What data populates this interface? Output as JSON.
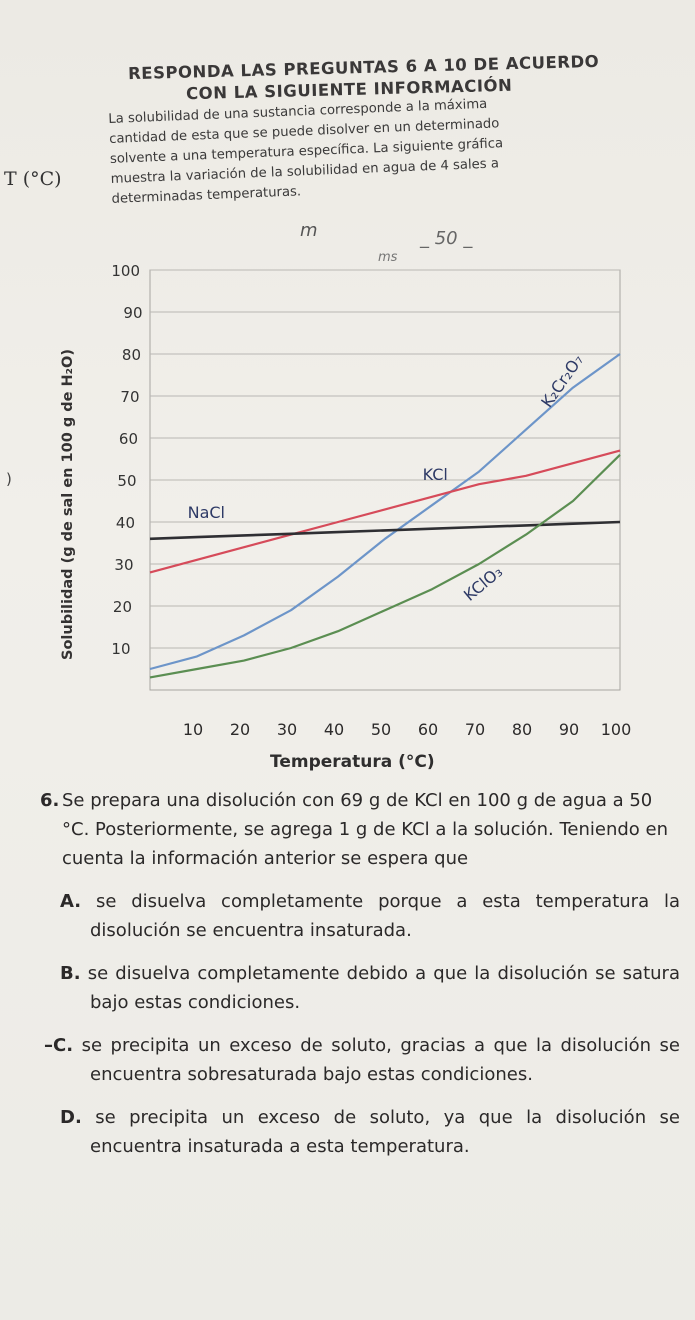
{
  "header": {
    "line1": "RESPONDA LAS PREGUNTAS 6 A 10 DE ACUERDO",
    "line2": "CON LA SIGUIENTE INFORMACIÓN"
  },
  "intro_lines": [
    "La solubilidad de una sustancia corresponde a la máxima",
    "cantidad de esta que se puede disolver en un determinado",
    "solvente a una temperatura específica. La siguiente gráfica",
    "muestra la variación de la solubilidad en agua de 4 sales a",
    "determinadas temperaturas."
  ],
  "margin_notes": {
    "t_label": "T (°C)",
    "paren": ")"
  },
  "handwriting": {
    "h1": "m",
    "h2": "_ 50 _",
    "h3": "ms"
  },
  "chart_data": {
    "type": "line",
    "xlabel": "Temperatura (°C)",
    "ylabel": "Solubilidad (g de sal en 100 g de H₂O)",
    "xlim": [
      0,
      100
    ],
    "ylim": [
      0,
      100
    ],
    "x_ticks": [
      10,
      20,
      30,
      40,
      50,
      60,
      70,
      80,
      90,
      100
    ],
    "y_ticks": [
      10,
      20,
      30,
      40,
      50,
      60,
      70,
      80,
      90,
      100
    ],
    "grid": true,
    "series": [
      {
        "name": "K₂Cr₂O₇",
        "color": "#6d95c9",
        "x": [
          0,
          10,
          20,
          30,
          40,
          50,
          60,
          70,
          80,
          90,
          100
        ],
        "y": [
          5,
          8,
          13,
          19,
          27,
          36,
          44,
          52,
          62,
          72,
          80
        ]
      },
      {
        "name": "KCl",
        "color": "#d64b5a",
        "x": [
          0,
          10,
          20,
          30,
          40,
          50,
          60,
          70,
          80,
          90,
          100
        ],
        "y": [
          28,
          31,
          34,
          37,
          40,
          43,
          46,
          49,
          51,
          54,
          57
        ]
      },
      {
        "name": "NaCl",
        "color": "#2f2f33",
        "x": [
          0,
          10,
          20,
          30,
          40,
          50,
          60,
          70,
          80,
          90,
          100
        ],
        "y": [
          36,
          36.4,
          36.8,
          37.2,
          37.6,
          38,
          38.4,
          38.8,
          39.2,
          39.6,
          40
        ]
      },
      {
        "name": "KClO₃",
        "color": "#5b8e52",
        "x": [
          0,
          10,
          20,
          30,
          40,
          50,
          60,
          70,
          80,
          90,
          100
        ],
        "y": [
          3,
          5,
          7,
          10,
          14,
          19,
          24,
          30,
          37,
          45,
          56
        ]
      }
    ]
  },
  "question": {
    "number": "6.",
    "stem": "Se prepara una disolución con 69 g de KCl en 100 g de agua a 50 °C. Posteriormente, se agrega 1 g de KCl a la solución. Teniendo en cuenta la información anterior se espera que",
    "options": [
      {
        "letter": "A.",
        "text": "se disuelva completamente porque a esta temperatura la disolución se encuentra insaturada."
      },
      {
        "letter": "B.",
        "text": "se disuelva completamente debido a que la disolución se satura bajo estas condiciones."
      },
      {
        "letter": "C.",
        "text": "se precipita un exceso de soluto, gracias a que la disolución se encuentra sobresaturada bajo estas condiciones."
      },
      {
        "letter": "D.",
        "text": "se precipita un exceso de soluto, ya que la disolución se encuentra insaturada a esta temperatura."
      }
    ]
  }
}
